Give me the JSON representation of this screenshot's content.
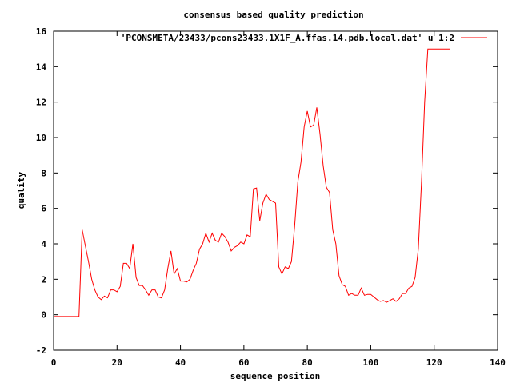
{
  "chart_data": {
    "type": "line",
    "title": "consensus based quality prediction",
    "xlabel": "sequence position",
    "ylabel": "quality",
    "xlim": [
      0,
      140
    ],
    "ylim": [
      -2,
      16
    ],
    "xticks": [
      0,
      20,
      40,
      60,
      80,
      100,
      120,
      140
    ],
    "yticks": [
      -2,
      0,
      2,
      4,
      6,
      8,
      10,
      12,
      14,
      16
    ],
    "grid": false,
    "legend_position": "top-right",
    "series": [
      {
        "name": "'PCONSMETA/23433/pcons23433.1X1F_A.ffas.14.pdb.local.dat' u 1:2",
        "color": "#ff0000",
        "x": [
          0,
          1,
          2,
          3,
          4,
          5,
          6,
          7,
          8,
          9,
          10,
          11,
          12,
          13,
          14,
          15,
          16,
          17,
          18,
          19,
          20,
          21,
          22,
          23,
          24,
          25,
          26,
          27,
          28,
          29,
          30,
          31,
          32,
          33,
          34,
          35,
          36,
          37,
          38,
          39,
          40,
          41,
          42,
          43,
          44,
          45,
          46,
          47,
          48,
          49,
          50,
          51,
          52,
          53,
          54,
          55,
          56,
          57,
          58,
          59,
          60,
          61,
          62,
          63,
          64,
          65,
          66,
          67,
          68,
          69,
          70,
          71,
          72,
          73,
          74,
          75,
          76,
          77,
          78,
          79,
          80,
          81,
          82,
          83,
          84,
          85,
          86,
          87,
          88,
          89,
          90,
          91,
          92,
          93,
          94,
          95,
          96,
          97,
          98,
          99,
          100,
          101,
          102,
          103,
          104,
          105,
          106,
          107,
          108,
          109,
          110,
          111,
          112,
          113,
          114,
          115,
          116,
          117,
          118,
          119,
          120,
          121,
          122,
          123,
          124,
          125
        ],
        "y": [
          -0.1,
          -0.1,
          -0.1,
          -0.1,
          -0.1,
          -0.1,
          -0.1,
          -0.1,
          -0.1,
          4.8,
          3.9,
          3.0,
          2.0,
          1.4,
          1.0,
          0.85,
          1.05,
          0.95,
          1.4,
          1.4,
          1.3,
          1.6,
          2.9,
          2.9,
          2.6,
          4.0,
          2.1,
          1.65,
          1.65,
          1.4,
          1.1,
          1.4,
          1.4,
          1.0,
          0.95,
          1.4,
          2.6,
          3.6,
          2.3,
          2.6,
          1.9,
          1.9,
          1.85,
          2.0,
          2.5,
          2.9,
          3.7,
          4.0,
          4.6,
          4.1,
          4.6,
          4.2,
          4.1,
          4.6,
          4.4,
          4.1,
          3.6,
          3.8,
          3.9,
          4.1,
          4.0,
          4.5,
          4.4,
          7.1,
          7.15,
          5.3,
          6.3,
          6.8,
          6.5,
          6.4,
          6.3,
          2.7,
          2.3,
          2.7,
          2.6,
          3.0,
          5.0,
          7.5,
          8.6,
          10.6,
          11.5,
          10.6,
          10.7,
          11.7,
          10.2,
          8.4,
          7.2,
          6.9,
          4.8,
          4.0,
          2.2,
          1.7,
          1.6,
          1.1,
          1.2,
          1.1,
          1.1,
          1.5,
          1.1,
          1.15,
          1.15,
          1.0,
          0.85,
          0.75,
          0.8,
          0.7,
          0.8,
          0.9,
          0.75,
          0.9,
          1.2,
          1.2,
          1.5,
          1.6,
          2.1,
          3.7,
          7.5,
          12.0,
          15.0,
          15.0,
          15.0,
          15.0,
          15.0,
          15.0,
          15.0,
          15.0
        ]
      }
    ]
  }
}
